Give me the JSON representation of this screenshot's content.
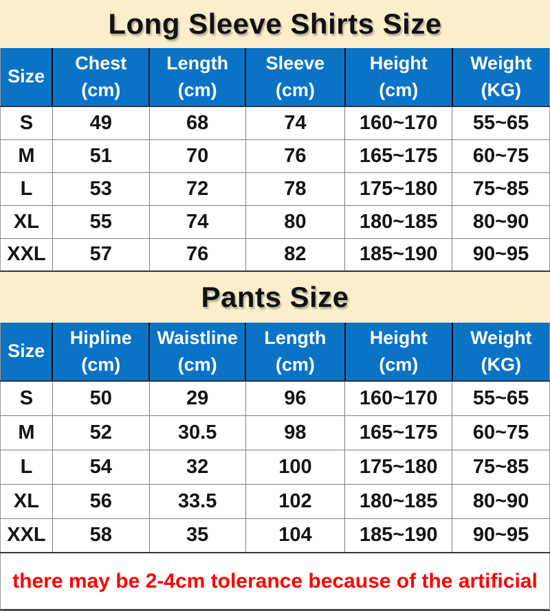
{
  "theme": {
    "header_bg": "#0B73C6",
    "title_band_bg": "#FBEFCB",
    "note_color": "#FF0000"
  },
  "tables": [
    {
      "title": "Long Sleeve Shirts Size",
      "columns": [
        {
          "label": "Size",
          "unit": ""
        },
        {
          "label": "Chest",
          "unit": "(cm)"
        },
        {
          "label": "Length",
          "unit": "(cm)"
        },
        {
          "label": "Sleeve",
          "unit": "(cm)"
        },
        {
          "label": "Height",
          "unit": "(cm)"
        },
        {
          "label": "Weight",
          "unit": "(KG)"
        }
      ],
      "rows": [
        [
          "S",
          "49",
          "68",
          "74",
          "160~170",
          "55~65"
        ],
        [
          "M",
          "51",
          "70",
          "76",
          "165~175",
          "60~75"
        ],
        [
          "L",
          "53",
          "72",
          "78",
          "175~180",
          "75~85"
        ],
        [
          "XL",
          "55",
          "74",
          "80",
          "180~185",
          "80~90"
        ],
        [
          "XXL",
          "57",
          "76",
          "82",
          "185~190",
          "90~95"
        ]
      ]
    },
    {
      "title": "Pants Size",
      "columns": [
        {
          "label": "Size",
          "unit": ""
        },
        {
          "label": "Hipline",
          "unit": "(cm)"
        },
        {
          "label": "Waistline",
          "unit": "(cm)"
        },
        {
          "label": "Length",
          "unit": "(cm)"
        },
        {
          "label": "Height",
          "unit": "(cm)"
        },
        {
          "label": "Weight",
          "unit": "(KG)"
        }
      ],
      "rows": [
        [
          "S",
          "50",
          "29",
          "96",
          "160~170",
          "55~65"
        ],
        [
          "M",
          "52",
          "30.5",
          "98",
          "165~175",
          "60~75"
        ],
        [
          "L",
          "54",
          "32",
          "100",
          "175~180",
          "75~85"
        ],
        [
          "XL",
          "56",
          "33.5",
          "102",
          "180~185",
          "80~90"
        ],
        [
          "XXL",
          "58",
          "35",
          "104",
          "185~190",
          "90~95"
        ]
      ]
    }
  ],
  "note": "there may be 2-4cm tolerance because of the artificial"
}
